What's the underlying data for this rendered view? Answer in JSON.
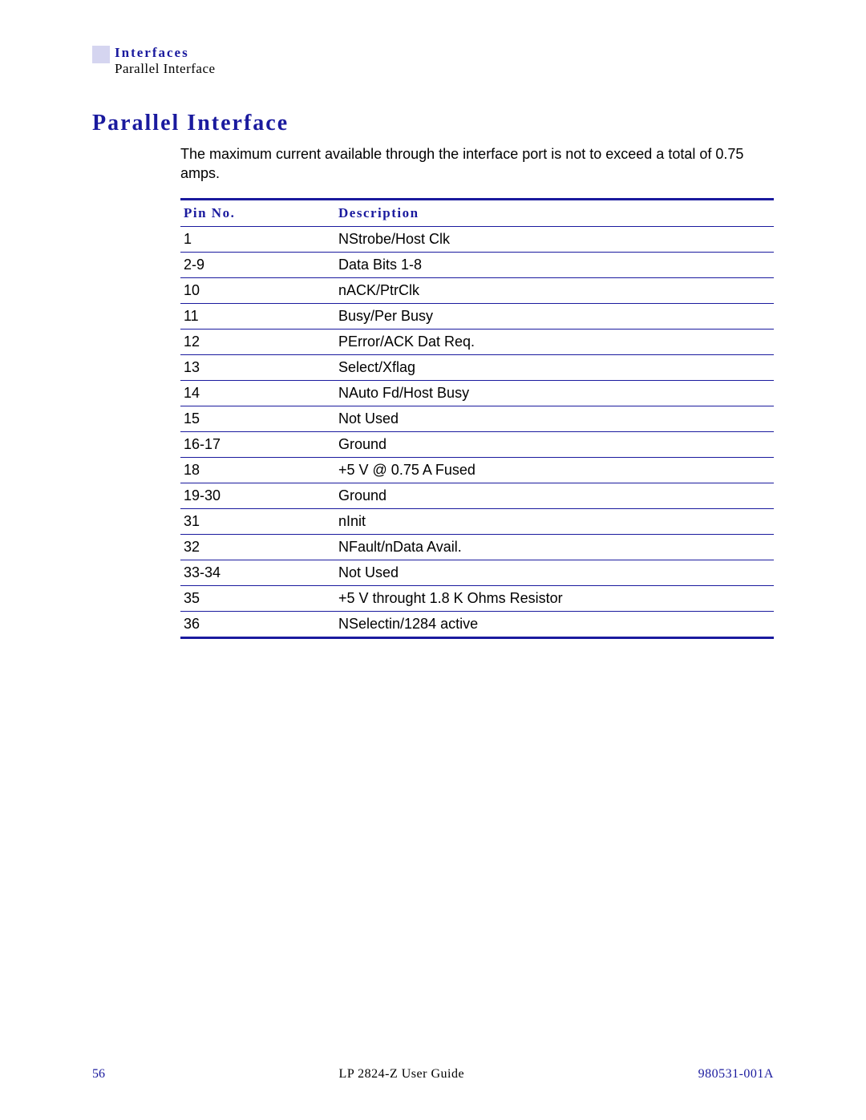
{
  "header": {
    "section": "Interfaces",
    "subsection": "Parallel Interface"
  },
  "title": "Parallel Interface",
  "intro": "The maximum current available through the interface port is not to exceed a total of 0.75 amps.",
  "table": {
    "headers": {
      "pin": "Pin No.",
      "desc": "Description"
    },
    "rows": [
      {
        "pin": "1",
        "desc": "NStrobe/Host Clk"
      },
      {
        "pin": "2-9",
        "desc": "Data Bits 1-8"
      },
      {
        "pin": "10",
        "desc": "nACK/PtrClk"
      },
      {
        "pin": "11",
        "desc": "Busy/Per Busy"
      },
      {
        "pin": "12",
        "desc": "PError/ACK Dat Req."
      },
      {
        "pin": "13",
        "desc": "Select/Xflag"
      },
      {
        "pin": "14",
        "desc": "NAuto Fd/Host Busy"
      },
      {
        "pin": "15",
        "desc": "Not Used"
      },
      {
        "pin": "16-17",
        "desc": "Ground"
      },
      {
        "pin": "18",
        "desc": "+5 V @ 0.75 A Fused"
      },
      {
        "pin": "19-30",
        "desc": "Ground"
      },
      {
        "pin": "31",
        "desc": "nInit"
      },
      {
        "pin": "32",
        "desc": "NFault/nData Avail."
      },
      {
        "pin": "33-34",
        "desc": "Not Used"
      },
      {
        "pin": "35",
        "desc": "+5 V throught 1.8 K Ohms Resistor"
      },
      {
        "pin": "36",
        "desc": "NSelectin/1284 active"
      }
    ]
  },
  "footer": {
    "page": "56",
    "center": "LP 2824-Z User Guide",
    "right": "980531-001A"
  }
}
